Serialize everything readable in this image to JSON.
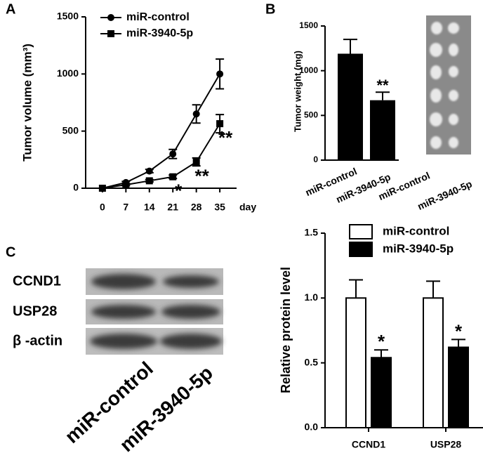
{
  "chart_data": [
    {
      "type": "line",
      "panel": "A",
      "y_label": "Tumor volume (mm³)",
      "x_label": "day",
      "x": [
        0,
        7,
        14,
        21,
        28,
        35
      ],
      "series": [
        {
          "name": "miR-control",
          "color": "#000000",
          "marker": "circle",
          "values": [
            0,
            50,
            150,
            300,
            650,
            1000
          ],
          "errors": [
            0,
            10,
            15,
            40,
            80,
            130
          ],
          "significance": [
            null,
            null,
            null,
            null,
            null,
            null
          ]
        },
        {
          "name": "miR-3940-5p",
          "color": "#000000",
          "marker": "square",
          "values": [
            0,
            30,
            65,
            100,
            230,
            565
          ],
          "errors": [
            0,
            8,
            10,
            15,
            35,
            80
          ],
          "significance": [
            null,
            null,
            null,
            "*",
            "**",
            "**"
          ]
        }
      ],
      "xlim": [
        -5,
        40
      ],
      "xticks": [
        0,
        7,
        14,
        21,
        28,
        35
      ],
      "ylim": [
        0,
        1500
      ],
      "yticks": [
        0,
        500,
        1000,
        1500
      ],
      "legend": "top-left"
    },
    {
      "type": "bar",
      "panel": "B",
      "y_label": "Tumor weight (mg)",
      "categories": [
        "miR-control",
        "miR-3940-5p"
      ],
      "values": [
        1190,
        670
      ],
      "errors": [
        160,
        90
      ],
      "significance": [
        null,
        "**"
      ],
      "color": "#000000",
      "ylim": [
        0,
        1500
      ],
      "yticks": [
        0,
        500,
        1000,
        1500
      ]
    },
    {
      "type": "grouped_bar",
      "y_label": "Relative protein level",
      "categories": [
        "CCND1",
        "USP28"
      ],
      "series": [
        {
          "name": "miR-control",
          "color": "#ffffff",
          "values": [
            1.0,
            1.0
          ],
          "errors": [
            0.14,
            0.13
          ],
          "significance": [
            null,
            null
          ]
        },
        {
          "name": "miR-3940-5p",
          "color": "#000000",
          "values": [
            0.54,
            0.62
          ],
          "errors": [
            0.06,
            0.06
          ],
          "significance": [
            "*",
            "*"
          ]
        }
      ],
      "ylim": [
        0,
        1.5
      ],
      "yticks": [
        {
          "value": 0,
          "label": "0.0"
        },
        0.5,
        {
          "value": 1,
          "label": "1.0"
        },
        1.5
      ],
      "legend": "top-right"
    }
  ],
  "tumor_photo": {
    "labels": [
      "miR-control",
      "miR-3940-5p"
    ]
  },
  "western_blot": {
    "panel": "C",
    "rows": [
      "CCND1",
      "USP28",
      "β -actin"
    ],
    "columns": [
      "miR-control",
      "miR-3940-5p"
    ]
  }
}
